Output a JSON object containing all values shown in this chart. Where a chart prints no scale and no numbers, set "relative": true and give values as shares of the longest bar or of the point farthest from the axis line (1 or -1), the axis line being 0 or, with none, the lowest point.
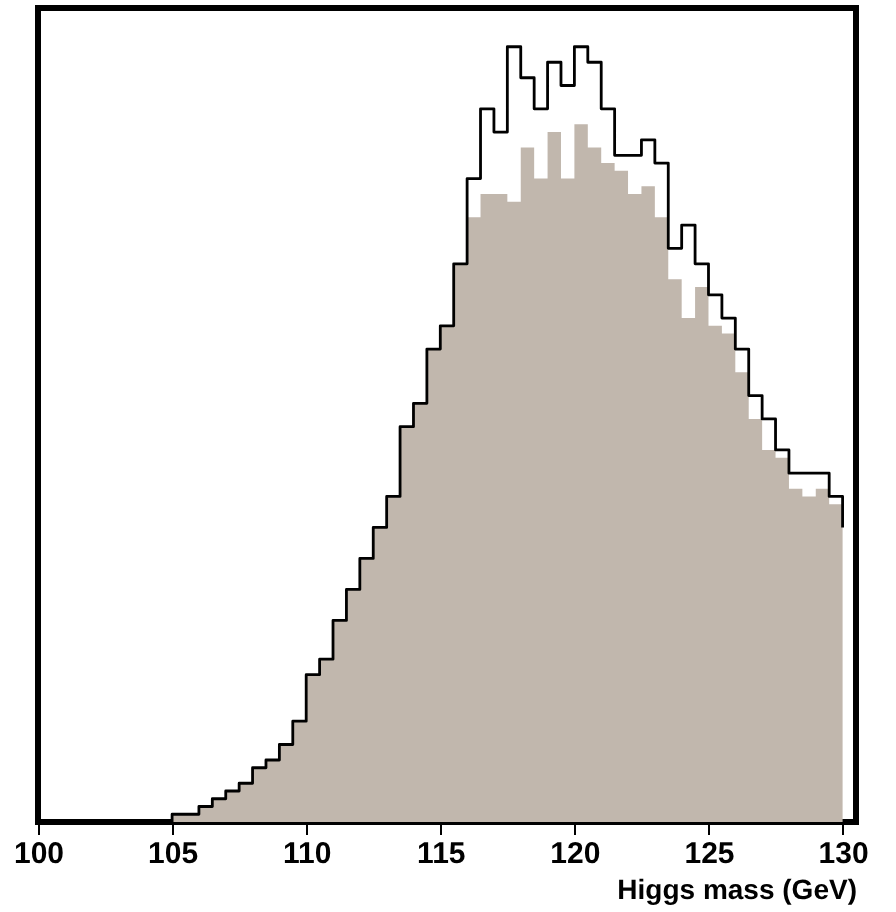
{
  "chart_data": {
    "type": "area",
    "xlabel": "Higgs mass (GeV)",
    "relative": true,
    "xlim": [
      100,
      130.5
    ],
    "xticks": [
      100,
      105,
      110,
      115,
      120,
      125,
      130
    ],
    "grid": false,
    "legend": false,
    "x": [
      100,
      100.5,
      101,
      101.5,
      102,
      102.5,
      103,
      103.5,
      104,
      104.5,
      105,
      105.5,
      106,
      106.5,
      107,
      107.5,
      108,
      108.5,
      109,
      109.5,
      110,
      110.5,
      111,
      111.5,
      112,
      112.5,
      113,
      113.5,
      114,
      114.5,
      115,
      115.5,
      116,
      116.5,
      117,
      117.5,
      118,
      118.5,
      119,
      119.5,
      120,
      120.5,
      121,
      121.5,
      122,
      122.5,
      123,
      123.5,
      124,
      124.5,
      125,
      125.5,
      126,
      126.5,
      127,
      127.5,
      128,
      128.5,
      129,
      129.5,
      130
    ],
    "series": [
      {
        "type": "step",
        "color": "#000000",
        "values": [
          0,
          0,
          0,
          0,
          0,
          0,
          0,
          0,
          0,
          0,
          0.01,
          0.01,
          0.02,
          0.03,
          0.04,
          0.05,
          0.07,
          0.08,
          0.1,
          0.13,
          0.19,
          0.21,
          0.26,
          0.3,
          0.34,
          0.38,
          0.42,
          0.51,
          0.54,
          0.61,
          0.64,
          0.72,
          0.83,
          0.92,
          0.89,
          1,
          0.96,
          0.92,
          0.98,
          0.95,
          1,
          0.98,
          0.92,
          0.86,
          0.86,
          0.88,
          0.85,
          0.74,
          0.77,
          0.72,
          0.68,
          0.65,
          0.61,
          0.55,
          0.52,
          0.48,
          0.45,
          0.45,
          0.45,
          0.42,
          0.38
        ]
      },
      {
        "color": "#c1b7ad",
        "values": [
          0,
          0,
          0,
          0,
          0,
          0,
          0,
          0,
          0,
          0,
          0.01,
          0.01,
          0.02,
          0.03,
          0.04,
          0.05,
          0.07,
          0.08,
          0.1,
          0.13,
          0.19,
          0.21,
          0.26,
          0.3,
          0.34,
          0.38,
          0.42,
          0.51,
          0.54,
          0.61,
          0.64,
          0.72,
          0.78,
          0.81,
          0.81,
          0.8,
          0.87,
          0.83,
          0.89,
          0.83,
          0.9,
          0.87,
          0.85,
          0.84,
          0.81,
          0.82,
          0.78,
          0.7,
          0.65,
          0.69,
          0.64,
          0.63,
          0.58,
          0.52,
          0.48,
          0.47,
          0.43,
          0.42,
          0.43,
          0.41,
          0.37
        ]
      }
    ]
  }
}
